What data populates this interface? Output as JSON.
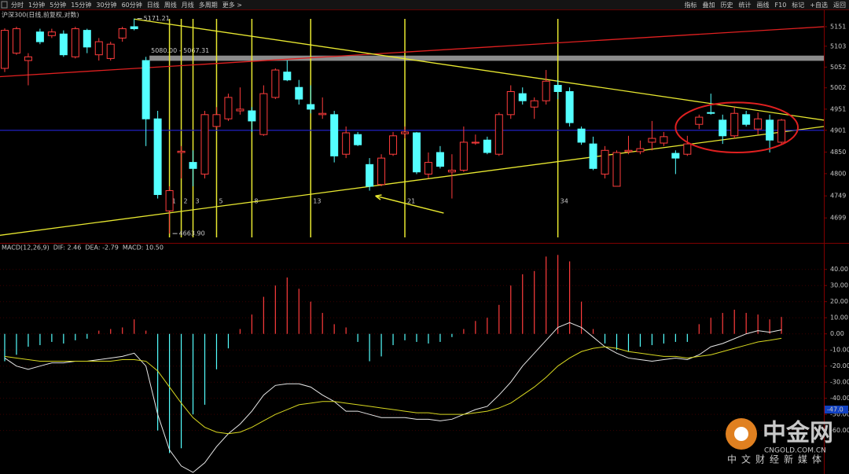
{
  "toolbar": {
    "tabs": [
      "分时",
      "1分钟",
      "5分钟",
      "15分钟",
      "30分钟",
      "60分钟",
      "日线",
      "周线",
      "月线",
      "多周期",
      "更多 >"
    ],
    "active": 6,
    "actions": [
      "指标",
      "叠加",
      "历史",
      "统计",
      "画线",
      "F10",
      "标记",
      "+自选",
      "返回"
    ]
  },
  "watermark": {
    "name": "中金网",
    "domain": "CNGOLD.COM.CN",
    "slogan": "中文财经新媒体"
  },
  "chart_data": [
    {
      "type": "candlestick",
      "title": "沪深300(日线,前复权,对数)",
      "log_scale": true,
      "xlim": [
        -0.4,
        69.6
      ],
      "ylim": [
        4650,
        5190
      ],
      "yticks": [
        5151,
        5103,
        5052,
        5002,
        4951,
        4901,
        4850,
        4800,
        4749,
        4699
      ],
      "up_color": "#ff3c3c",
      "down_color": "#54ffff",
      "open": [
        5049,
        5086,
        5068,
        5138,
        5129,
        5133,
        5077,
        5142,
        5082,
        5073,
        5123,
        5151,
        5068,
        4928,
        4715,
        4849,
        4826,
        4799,
        4910,
        4928,
        4947,
        4947,
        4891,
        4979,
        5040,
        5003,
        4962,
        4938,
        4938,
        4845,
        4891,
        4821,
        4775,
        4845,
        4893,
        4895,
        4799,
        4849,
        4804,
        4808,
        4871,
        4878,
        4845,
        4938,
        4988,
        4956,
        4971,
        5008,
        4993,
        4904,
        4869,
        4799,
        4771,
        4851,
        4851,
        4873,
        4871,
        4847,
        4845,
        4915,
        4943,
        4925,
        4888,
        4938,
        4904,
        4925,
        4873
      ],
      "high": [
        5147,
        5151,
        5086,
        5146,
        5146,
        5142,
        5151,
        5146,
        5123,
        5114,
        5151,
        5171.21,
        5077,
        4947,
        4771,
        4864,
        4854,
        4947,
        4956,
        4988,
        5003,
        4956,
        5008,
        5049,
        5068,
        5021,
        5008,
        4979,
        4947,
        4910,
        4897,
        4836,
        4845,
        4897,
        4910,
        4897,
        4849,
        4864,
        4845,
        4910,
        4891,
        4886,
        4943,
        5008,
        5003,
        4979,
        5045,
        5021,
        5003,
        4910,
        4886,
        4864,
        4854,
        4888,
        4877,
        4923,
        4897,
        4854,
        4888,
        4938,
        4988,
        4938,
        4956,
        4947,
        4943,
        4938,
        4928
      ],
      "low": [
        5040,
        5082,
        5008,
        5108,
        5123,
        5077,
        5073,
        5086,
        5068,
        5068,
        5114,
        5142,
        4864,
        4743,
        4663.9,
        4789,
        4771,
        4789,
        4904,
        4923,
        4938,
        4897,
        4888,
        4975,
        5018,
        4962,
        4941,
        4928,
        4826,
        4836,
        4864,
        4761,
        4771,
        4841,
        4882,
        4799,
        4789,
        4812,
        4743,
        4804,
        4867,
        4845,
        4841,
        4928,
        4962,
        4928,
        4962,
        4975,
        4910,
        4867,
        4808,
        4789,
        4771,
        4845,
        4845,
        4854,
        4864,
        4799,
        4841,
        4904,
        4938,
        4869,
        4882,
        4910,
        4891,
        4849,
        4869
      ],
      "close": [
        5142,
        5146,
        5077,
        5114,
        5138,
        5082,
        5146,
        5101,
        5114,
        5108,
        5146,
        5146,
        4928,
        4752,
        4761,
        4852,
        4812,
        4938,
        4938,
        4979,
        4951,
        4923,
        4988,
        5045,
        5021,
        4975,
        4951,
        4941,
        4841,
        4895,
        4867,
        4771,
        4836,
        4888,
        4897,
        4804,
        4826,
        4817,
        4808,
        4873,
        4873,
        4849,
        4938,
        4993,
        4971,
        4971,
        5018,
        4993,
        4919,
        4873,
        4812,
        4854,
        4849,
        4854,
        4858,
        4882,
        4886,
        4836,
        4869,
        4932,
        4941,
        4888,
        4941,
        4915,
        4928,
        4878,
        4925
      ],
      "trendlines": [
        {
          "color": "#e02020",
          "x": [
            -0.4,
            69.6
          ],
          "y": [
            5029,
            5151
          ]
        },
        {
          "color": "#e8e830",
          "x": [
            11,
            69.6
          ],
          "y": [
            5170,
            4925
          ]
        },
        {
          "color": "#e8e830",
          "x": [
            -0.4,
            69.6
          ],
          "y": [
            4660,
            4910
          ]
        },
        {
          "color": "#2020c0",
          "x": [
            -0.4,
            69.6
          ],
          "y": [
            4901,
            4901
          ]
        }
      ],
      "band": {
        "x": [
          12.3,
          69.6
        ],
        "y": [
          5080,
          5067.31
        ],
        "label": "5080.00 - 5067.31",
        "color": "#8c8c8c"
      },
      "fib_lines": [
        {
          "index": 14,
          "label": 1
        },
        {
          "index": 15,
          "label": 2
        },
        {
          "index": 16,
          "label": 3
        },
        {
          "index": 18,
          "label": 5
        },
        {
          "index": 21,
          "label": 8
        },
        {
          "index": 26,
          "label": 13
        },
        {
          "index": 34,
          "label": 21
        },
        {
          "index": 47,
          "label": 34
        }
      ],
      "fib_color": "#e8e830",
      "high_label": {
        "index": 11,
        "value": 5171.21
      },
      "low_label": {
        "index": 14,
        "value": 4663.9,
        "label": "4663.90"
      },
      "arrow": {
        "x": [
          37.3,
          31.5
        ],
        "y": [
          4710,
          4749
        ],
        "color": "#e8e830"
      },
      "ellipse": {
        "x": [
          57,
          67.4
        ],
        "y": [
          4967,
          4849
        ],
        "color": "#e02020"
      }
    },
    {
      "type": "macd",
      "title": "MACD(12,26,9)",
      "xlim": [
        -0.4,
        69.6
      ],
      "ylim": [
        -87,
        55
      ],
      "yticks": [
        {
          "value": 40,
          "label": "40.00"
        },
        {
          "value": 30,
          "label": "30.00"
        },
        {
          "value": 20,
          "label": "20.00"
        },
        {
          "value": 10,
          "label": "10.00"
        },
        {
          "value": 0,
          "label": "0.00"
        },
        {
          "value": -10,
          "label": "-10.00"
        },
        {
          "value": -20,
          "label": "-20.00"
        },
        {
          "value": -30,
          "label": "-30.00"
        },
        {
          "value": -40,
          "label": "-40.00"
        },
        {
          "value": -50,
          "label": "-50.00"
        },
        {
          "value": -60,
          "label": "-60.00"
        }
      ],
      "legend": [
        {
          "label": "DIF: 2.46",
          "color": "#ffffff"
        },
        {
          "label": "DEA: -2.79",
          "color": "#e8e830"
        },
        {
          "label": "MACD: 10.50",
          "color": "#ff40ff"
        }
      ],
      "bars": {
        "up_color": "#ff3c3c",
        "down_color": "#54ffff",
        "values": [
          -17,
          -13,
          -8,
          -7,
          -5,
          -6,
          -4,
          -3,
          2,
          3,
          4,
          9,
          2,
          -60,
          -74,
          -71,
          -50,
          -44,
          -22,
          -9,
          3,
          12,
          23,
          30,
          35,
          28,
          20,
          13,
          6,
          4,
          -5,
          -17,
          -14,
          -7,
          -4,
          -5,
          -6,
          -5,
          -2,
          3,
          8,
          10,
          18,
          30,
          37,
          39,
          48,
          49,
          45,
          20,
          3,
          -6,
          -10,
          -11,
          -8,
          -7,
          -6,
          -5,
          -5,
          6,
          10,
          13,
          15,
          13,
          12,
          9,
          10.5
        ]
      },
      "series": [
        {
          "name": "DIF",
          "color": "#e8e8e8",
          "values": [
            -15,
            -20,
            -22,
            -20,
            -18,
            -18,
            -17,
            -17,
            -16,
            -15,
            -14,
            -12,
            -20,
            -50,
            -72,
            -82,
            -86,
            -80,
            -70,
            -62,
            -56,
            -48,
            -38,
            -32,
            -31,
            -31,
            -33,
            -38,
            -42,
            -48,
            -48,
            -50,
            -52,
            -52,
            -52,
            -53,
            -53,
            -54,
            -53,
            -50,
            -47,
            -45,
            -38,
            -30,
            -20,
            -12,
            -4,
            4,
            7,
            4,
            -2,
            -8,
            -12,
            -15,
            -16,
            -17,
            -16,
            -15,
            -16,
            -13,
            -8,
            -6,
            -3,
            0,
            2,
            1,
            2.46
          ]
        },
        {
          "name": "DEA",
          "color": "#d8d820",
          "values": [
            -14,
            -15,
            -16,
            -17,
            -17,
            -17,
            -17,
            -17,
            -17,
            -17,
            -16,
            -16,
            -17,
            -23,
            -33,
            -43,
            -52,
            -58,
            -61,
            -62,
            -61,
            -58,
            -54,
            -50,
            -47,
            -44,
            -43,
            -42,
            -42,
            -43,
            -44,
            -45,
            -46,
            -47,
            -48,
            -49,
            -49,
            -50,
            -50,
            -50,
            -49,
            -48,
            -46,
            -43,
            -38,
            -33,
            -27,
            -20,
            -15,
            -11,
            -9,
            -8,
            -9,
            -11,
            -12,
            -13,
            -14,
            -14,
            -15,
            -14,
            -13,
            -11,
            -9,
            -7,
            -5,
            -4,
            -2.79
          ]
        }
      ],
      "cursor": {
        "value": -47,
        "label": "-47.0"
      }
    }
  ]
}
